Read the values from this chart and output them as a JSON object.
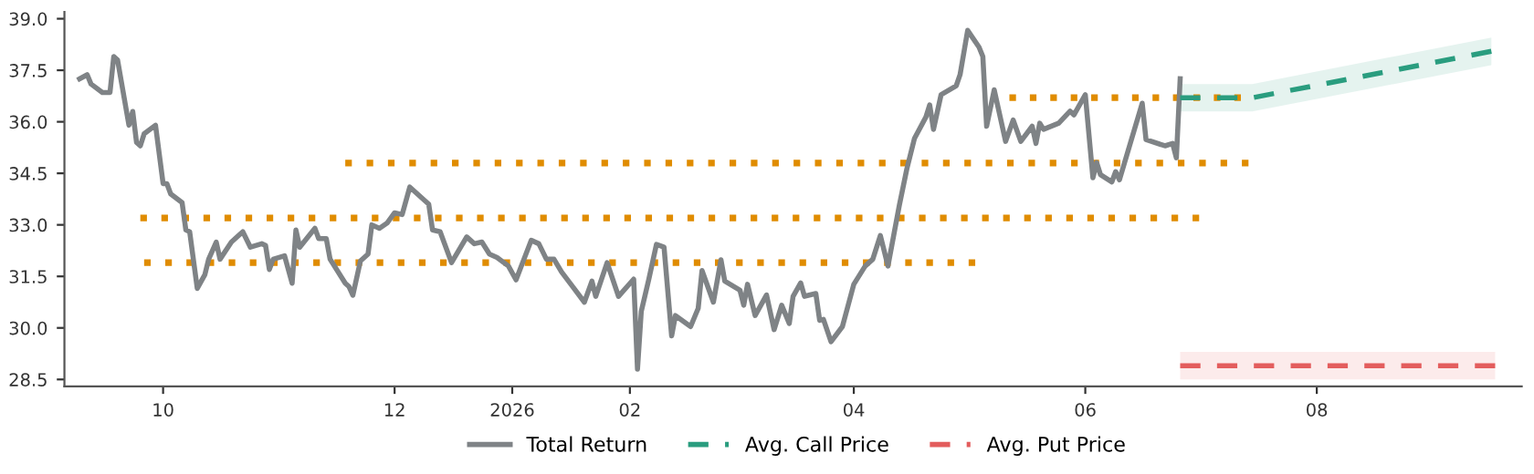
{
  "chart_data": {
    "type": "line",
    "xlim": [
      "2025-09-05",
      "2026-09-24"
    ],
    "xticks": [
      {
        "value": "2025-10-01",
        "label": "10"
      },
      {
        "value": "2025-12-01",
        "label": "12"
      },
      {
        "value": "2026-01-01",
        "label": "2026"
      },
      {
        "value": "2026-02-01",
        "label": "02"
      },
      {
        "value": "2026-04-01",
        "label": "04"
      },
      {
        "value": "2026-06-01",
        "label": "06"
      },
      {
        "value": "2026-08-01",
        "label": "08"
      }
    ],
    "ylim": [
      28.3,
      39.2
    ],
    "yticks": [
      {
        "value": 28.5,
        "label": "28.5"
      },
      {
        "value": 30.0,
        "label": "30.0"
      },
      {
        "value": 31.5,
        "label": "31.5"
      },
      {
        "value": 33.0,
        "label": "33.0"
      },
      {
        "value": 34.5,
        "label": "34.5"
      },
      {
        "value": 36.0,
        "label": "36.0"
      },
      {
        "value": 37.5,
        "label": "37.5"
      },
      {
        "value": 39.0,
        "label": "39.0"
      }
    ],
    "grid": false,
    "legend": "bottom",
    "series": [
      {
        "color": "#e08c00",
        "line_style": "dotted",
        "x": [
          "2025-11-18",
          "2026-07-14"
        ],
        "values": [
          34.8,
          34.8
        ]
      },
      {
        "color": "#e08c00",
        "line_style": "dotted",
        "x": [
          "2025-09-25",
          "2026-07-01"
        ],
        "values": [
          33.2,
          33.2
        ]
      },
      {
        "color": "#e08c00",
        "line_style": "dotted",
        "x": [
          "2025-09-26",
          "2026-05-03"
        ],
        "values": [
          31.9,
          31.9
        ]
      },
      {
        "color": "#e08c00",
        "line_style": "dotted",
        "x": [
          "2026-05-12",
          "2026-07-12"
        ],
        "values": [
          36.7,
          36.7
        ]
      },
      {
        "name": "Total Return",
        "color": "#7f8386",
        "line_style": "solid",
        "x": [
          "2025-09-09",
          "2025-09-11",
          "2025-09-12",
          "2025-09-15",
          "2025-09-17",
          "2025-09-18",
          "2025-09-19",
          "2025-09-22",
          "2025-09-23",
          "2025-09-24",
          "2025-09-25",
          "2025-09-26",
          "2025-09-29",
          "2025-10-01",
          "2025-10-02",
          "2025-10-03",
          "2025-10-06",
          "2025-10-07",
          "2025-10-08",
          "2025-10-10",
          "2025-10-12",
          "2025-10-13",
          "2025-10-15",
          "2025-10-16",
          "2025-10-19",
          "2025-10-22",
          "2025-10-24",
          "2025-10-27",
          "2025-10-28",
          "2025-10-29",
          "2025-10-30",
          "2025-11-02",
          "2025-11-04",
          "2025-11-05",
          "2025-11-06",
          "2025-11-10",
          "2025-11-11",
          "2025-11-13",
          "2025-11-14",
          "2025-11-18",
          "2025-11-19",
          "2025-11-20",
          "2025-11-22",
          "2025-11-24",
          "2025-11-25",
          "2025-11-27",
          "2025-11-29",
          "2025-12-01",
          "2025-12-03",
          "2025-12-05",
          "2025-12-10",
          "2025-12-11",
          "2025-12-13",
          "2025-12-16",
          "2025-12-20",
          "2025-12-22",
          "2025-12-24",
          "2025-12-26",
          "2025-12-28",
          "2025-12-31",
          "2026-01-02",
          "2026-01-06",
          "2026-01-08",
          "2026-01-10",
          "2026-01-12",
          "2026-01-14",
          "2026-01-17",
          "2026-01-20",
          "2026-01-22",
          "2026-01-23",
          "2026-01-26",
          "2026-01-29",
          "2026-02-02",
          "2026-02-03",
          "2026-02-04",
          "2026-02-06",
          "2026-02-08",
          "2026-02-10",
          "2026-02-12",
          "2026-02-13",
          "2026-02-17",
          "2026-02-19",
          "2026-02-20",
          "2026-02-23",
          "2026-02-25",
          "2026-02-26",
          "2026-03-02",
          "2026-03-03",
          "2026-03-04",
          "2026-03-06",
          "2026-03-09",
          "2026-03-11",
          "2026-03-13",
          "2026-03-15",
          "2026-03-16",
          "2026-03-18",
          "2026-03-19",
          "2026-03-22",
          "2026-03-23",
          "2026-03-24",
          "2026-03-26",
          "2026-03-29",
          "2026-04-01",
          "2026-04-04",
          "2026-04-06",
          "2026-04-08",
          "2026-04-10",
          "2026-04-13",
          "2026-04-15",
          "2026-04-17",
          "2026-04-20",
          "2026-04-21",
          "2026-04-22",
          "2026-04-24",
          "2026-04-28",
          "2026-04-29",
          "2026-05-01",
          "2026-05-04",
          "2026-05-05",
          "2026-05-06",
          "2026-05-08",
          "2026-05-11",
          "2026-05-13",
          "2026-05-15",
          "2026-05-18",
          "2026-05-19",
          "2026-05-20",
          "2026-05-21",
          "2026-05-25",
          "2026-05-28",
          "2026-05-29",
          "2026-06-01",
          "2026-06-03",
          "2026-06-04",
          "2026-06-05",
          "2026-06-08",
          "2026-06-09",
          "2026-06-10",
          "2026-06-16",
          "2026-06-17",
          "2026-06-22",
          "2026-06-24",
          "2026-06-25",
          "2026-06-26"
        ],
        "values": [
          37.25,
          37.37,
          37.1,
          36.85,
          36.85,
          37.9,
          37.8,
          35.9,
          36.3,
          35.4,
          35.3,
          35.65,
          35.9,
          34.2,
          34.2,
          33.9,
          33.65,
          32.85,
          32.8,
          31.15,
          31.55,
          32.0,
          32.5,
          32.0,
          32.5,
          32.8,
          32.35,
          32.45,
          32.4,
          31.7,
          32.0,
          32.1,
          31.3,
          32.85,
          32.35,
          32.9,
          32.6,
          32.6,
          32.0,
          31.3,
          31.2,
          30.95,
          31.95,
          32.15,
          33.0,
          32.9,
          33.05,
          33.35,
          33.3,
          34.1,
          33.6,
          32.85,
          32.8,
          31.9,
          32.65,
          32.45,
          32.5,
          32.15,
          32.05,
          31.8,
          31.4,
          32.55,
          32.45,
          32.0,
          32.0,
          31.63,
          31.19,
          30.75,
          31.36,
          30.92,
          31.9,
          30.92,
          31.42,
          28.8,
          30.48,
          31.42,
          32.43,
          32.35,
          29.77,
          30.36,
          30.04,
          30.57,
          31.67,
          30.75,
          31.98,
          31.36,
          31.1,
          30.66,
          31.27,
          30.36,
          30.96,
          29.95,
          30.66,
          30.13,
          30.92,
          31.31,
          30.92,
          31.0,
          30.22,
          30.25,
          29.6,
          30.04,
          31.27,
          31.8,
          32.0,
          32.69,
          31.8,
          33.57,
          34.64,
          35.52,
          36.14,
          36.49,
          35.78,
          36.79,
          37.05,
          37.37,
          38.66,
          38.17,
          37.9,
          35.87,
          36.93,
          35.43,
          36.05,
          35.43,
          35.87,
          35.37,
          35.96,
          35.78,
          35.96,
          36.31,
          36.2,
          36.79,
          34.37,
          34.81,
          34.46,
          34.25,
          34.55,
          34.31,
          36.54,
          35.48,
          35.3,
          35.37,
          34.95,
          37.25
        ]
      },
      {
        "name": "Avg. Call Price",
        "color": "#2a9d7f",
        "line_style": "dashed",
        "x": [
          "2026-06-26",
          "2026-07-15",
          "2026-09-16"
        ],
        "values": [
          36.7,
          36.7,
          38.05
        ],
        "lower": [
          36.3,
          36.3,
          37.65
        ],
        "upper": [
          37.1,
          37.1,
          38.45
        ]
      },
      {
        "name": "Avg. Put Price",
        "color": "#e35d5d",
        "line_style": "dashed",
        "x": [
          "2026-06-26",
          "2026-09-17"
        ],
        "values": [
          28.9,
          28.9
        ],
        "lower": [
          28.5,
          28.5
        ],
        "upper": [
          29.3,
          29.3
        ]
      }
    ]
  }
}
